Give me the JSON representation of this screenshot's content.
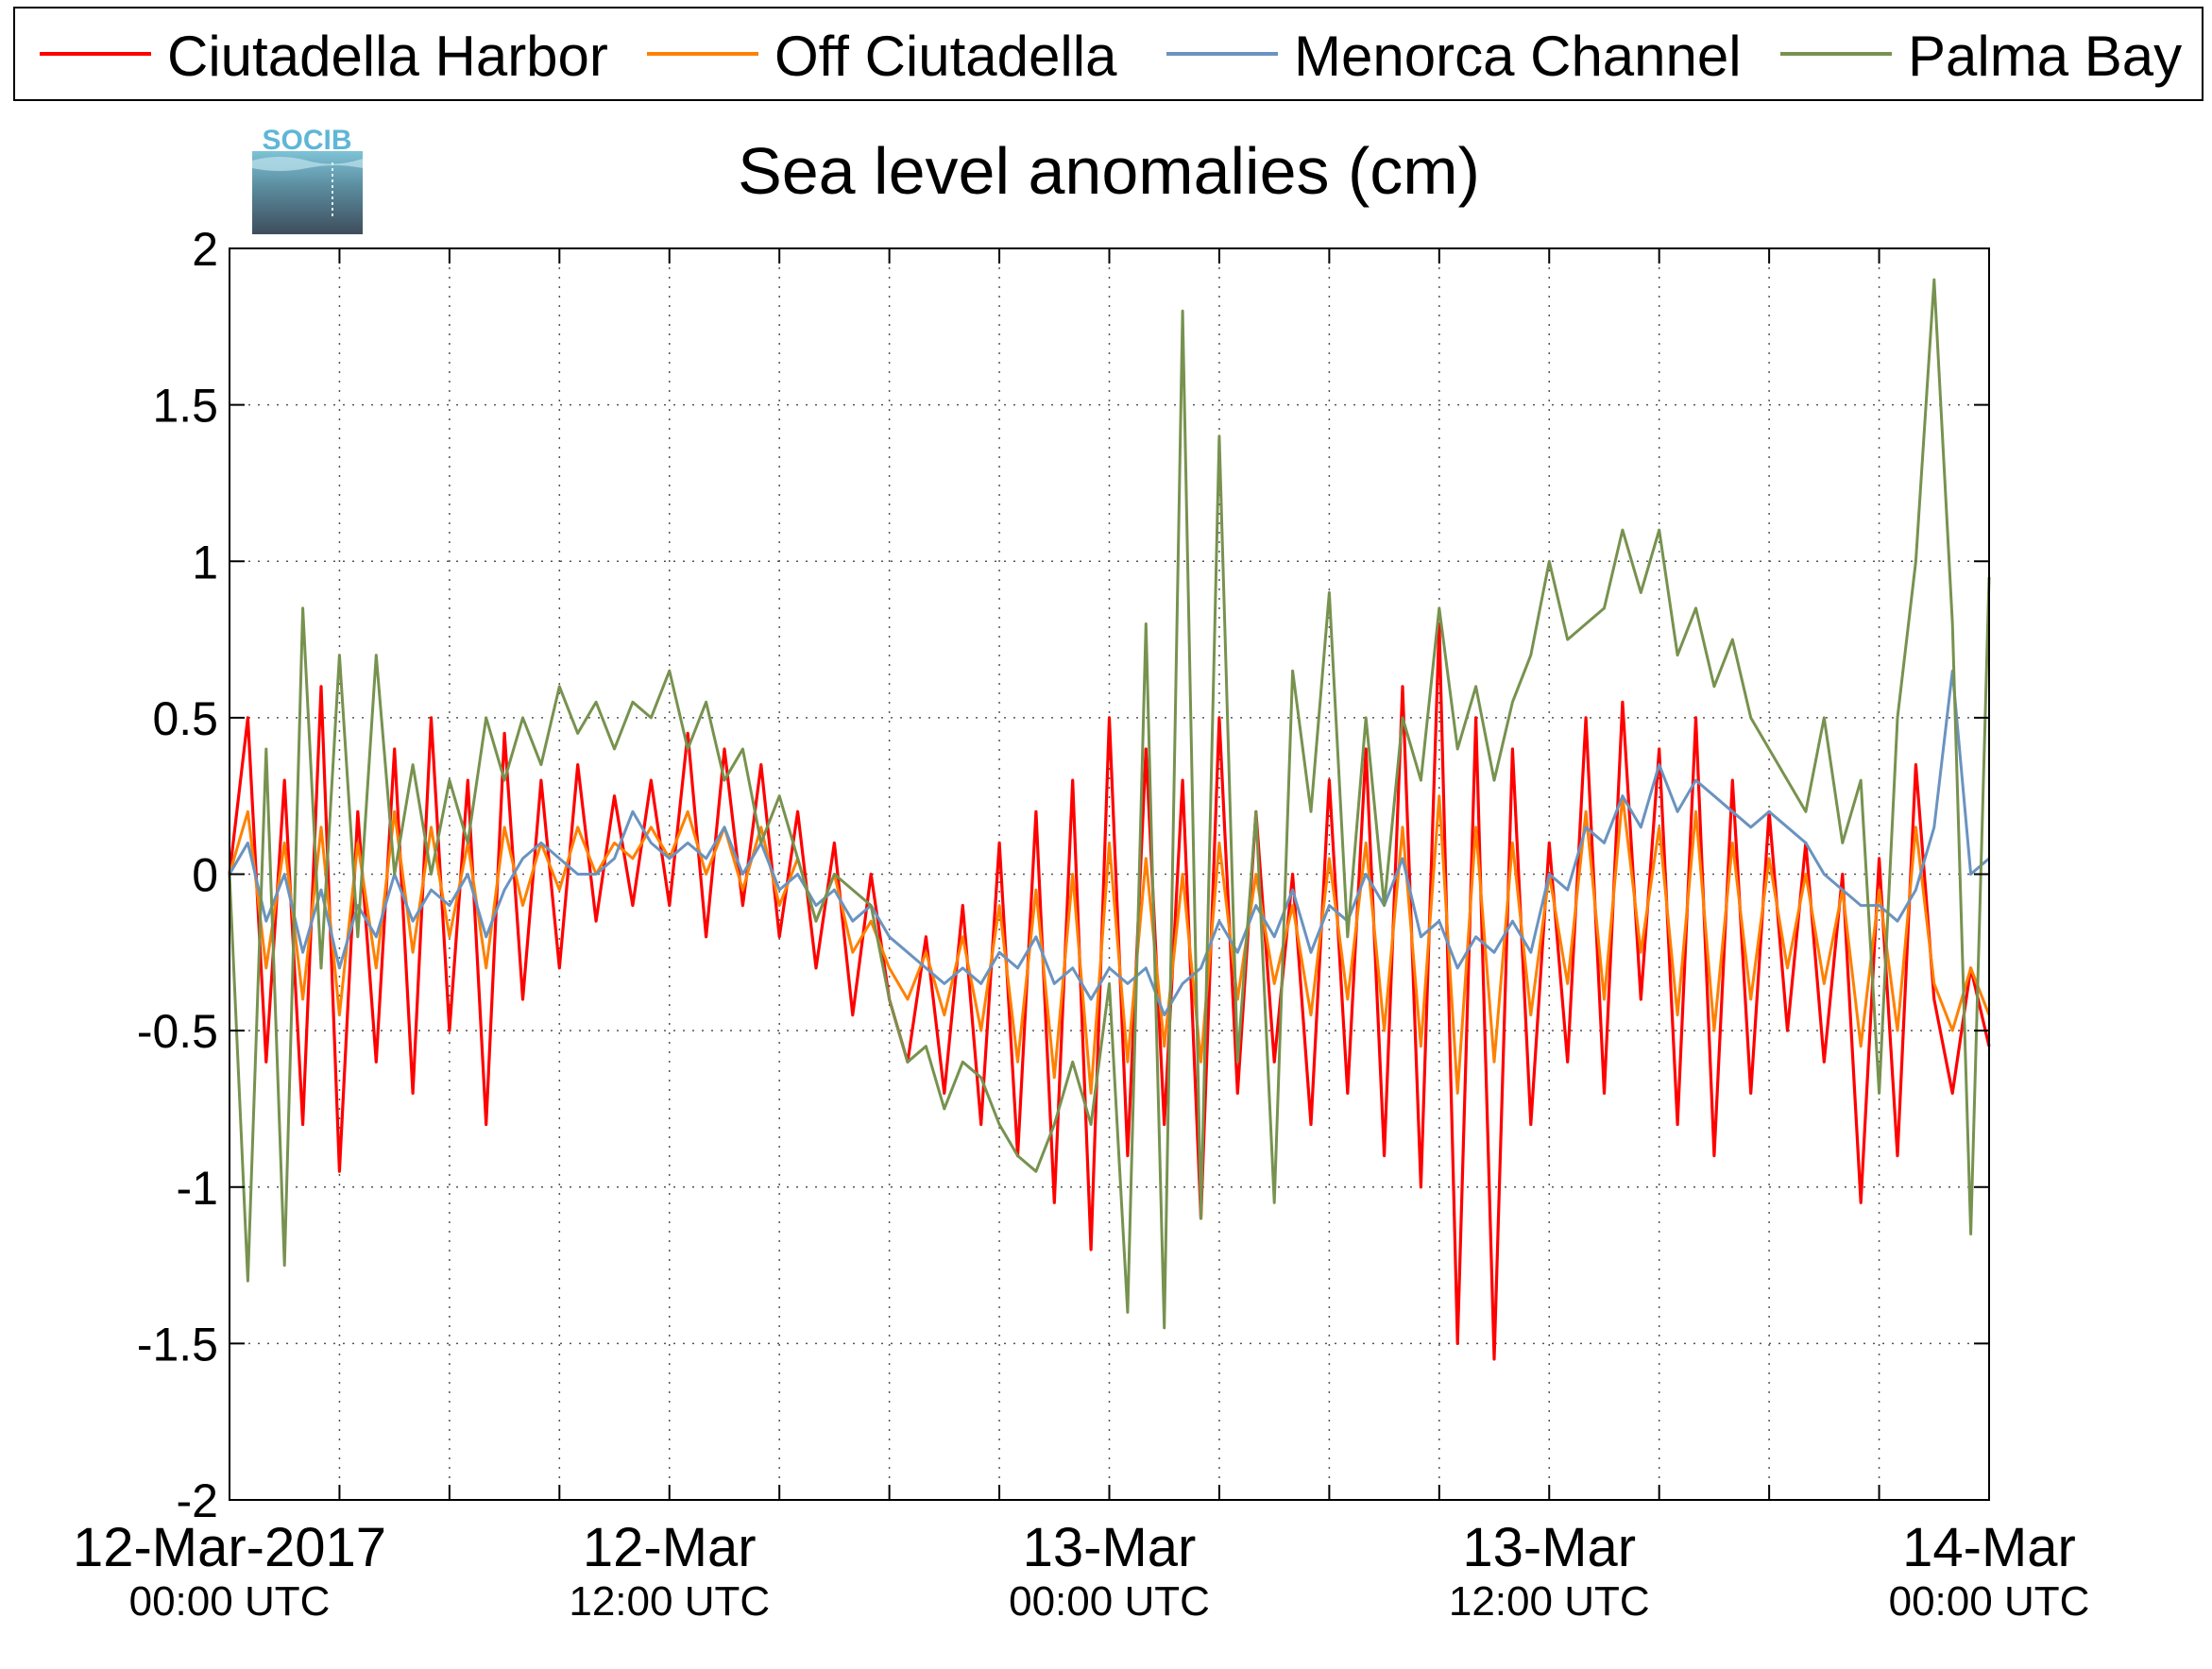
{
  "chart_data": {
    "type": "line",
    "title": "Sea level anomalies (cm)",
    "logo_text": "SOCIB",
    "xlabel": "",
    "ylabel": "",
    "ylim": [
      -2,
      2
    ],
    "y_ticks": [
      -2,
      -1.5,
      -1,
      -0.5,
      0,
      0.5,
      1,
      1.5,
      2
    ],
    "y_tick_labels": [
      "-2",
      "-1.5",
      "-1",
      "-0.5",
      "0",
      "0.5",
      "1",
      "1.5",
      "2"
    ],
    "xlim_hours": [
      0,
      48
    ],
    "x_ticks": [
      {
        "hour": 0,
        "line1": "12-Mar-2017",
        "line2": "00:00 UTC"
      },
      {
        "hour": 12,
        "line1": "12-Mar",
        "line2": "12:00 UTC"
      },
      {
        "hour": 24,
        "line1": "13-Mar",
        "line2": "00:00 UTC"
      },
      {
        "hour": 36,
        "line1": "13-Mar",
        "line2": "12:00 UTC"
      },
      {
        "hour": 48,
        "line1": "14-Mar",
        "line2": "00:00 UTC"
      }
    ],
    "minor_tick_hours": [
      3,
      6,
      9,
      15,
      18,
      21,
      27,
      30,
      33,
      39,
      42,
      45
    ],
    "grid": true,
    "legend_position": "top",
    "series": [
      {
        "name": "Ciutadella Harbor",
        "color": "#ff0000",
        "x": [
          0,
          0.5,
          1,
          1.5,
          2,
          2.5,
          3,
          3.5,
          4,
          4.5,
          5,
          5.5,
          6,
          6.5,
          7,
          7.5,
          8,
          8.5,
          9,
          9.5,
          10,
          10.5,
          11,
          11.5,
          12,
          12.5,
          13,
          13.5,
          14,
          14.5,
          15,
          15.5,
          16,
          16.5,
          17,
          17.5,
          18,
          18.5,
          19,
          19.5,
          20,
          20.5,
          21,
          21.5,
          22,
          22.5,
          23,
          23.5,
          24,
          24.5,
          25,
          25.5,
          26,
          26.5,
          27,
          27.5,
          28,
          28.5,
          29,
          29.5,
          30,
          30.5,
          31,
          31.5,
          32,
          32.5,
          33,
          33.5,
          34,
          34.5,
          35,
          35.5,
          36,
          36.5,
          37,
          37.5,
          38,
          38.5,
          39,
          39.5,
          40,
          40.5,
          41,
          41.5,
          42,
          42.5,
          43,
          43.5,
          44,
          44.5,
          45,
          45.5,
          46,
          46.5,
          47,
          47.5,
          48
        ],
        "y": [
          0.0,
          0.5,
          -0.6,
          0.3,
          -0.8,
          0.6,
          -0.95,
          0.2,
          -0.6,
          0.4,
          -0.7,
          0.5,
          -0.5,
          0.3,
          -0.8,
          0.45,
          -0.4,
          0.3,
          -0.3,
          0.35,
          -0.15,
          0.25,
          -0.1,
          0.3,
          -0.1,
          0.45,
          -0.2,
          0.4,
          -0.1,
          0.35,
          -0.2,
          0.2,
          -0.3,
          0.1,
          -0.45,
          0.0,
          -0.4,
          -0.6,
          -0.2,
          -0.7,
          -0.1,
          -0.8,
          0.1,
          -0.9,
          0.2,
          -1.05,
          0.3,
          -1.2,
          0.5,
          -0.9,
          0.4,
          -0.8,
          0.3,
          -1.1,
          0.5,
          -0.7,
          0.2,
          -0.6,
          0.0,
          -0.8,
          0.3,
          -0.7,
          0.4,
          -0.9,
          0.6,
          -1.0,
          0.8,
          -1.5,
          0.5,
          -1.55,
          0.4,
          -0.8,
          0.1,
          -0.6,
          0.5,
          -0.7,
          0.55,
          -0.4,
          0.4,
          -0.8,
          0.5,
          -0.9,
          0.3,
          -0.7,
          0.2,
          -0.5,
          0.1,
          -0.6,
          0.0,
          -1.05,
          0.05,
          -0.9,
          0.35,
          -0.4,
          -0.7,
          -0.3,
          -0.55
        ]
      },
      {
        "name": "Off Ciutadella",
        "color": "#ff8000",
        "x": [
          0,
          0.5,
          1,
          1.5,
          2,
          2.5,
          3,
          3.5,
          4,
          4.5,
          5,
          5.5,
          6,
          6.5,
          7,
          7.5,
          8,
          8.5,
          9,
          9.5,
          10,
          10.5,
          11,
          11.5,
          12,
          12.5,
          13,
          13.5,
          14,
          14.5,
          15,
          15.5,
          16,
          16.5,
          17,
          17.5,
          18,
          18.5,
          19,
          19.5,
          20,
          20.5,
          21,
          21.5,
          22,
          22.5,
          23,
          23.5,
          24,
          24.5,
          25,
          25.5,
          26,
          26.5,
          27,
          27.5,
          28,
          28.5,
          29,
          29.5,
          30,
          30.5,
          31,
          31.5,
          32,
          32.5,
          33,
          33.5,
          34,
          34.5,
          35,
          35.5,
          36,
          36.5,
          37,
          37.5,
          38,
          38.5,
          39,
          39.5,
          40,
          40.5,
          41,
          41.5,
          42,
          42.5,
          43,
          43.5,
          44,
          44.5,
          45,
          45.5,
          46,
          46.5,
          47,
          47.5,
          48
        ],
        "y": [
          0.0,
          0.2,
          -0.3,
          0.1,
          -0.4,
          0.15,
          -0.45,
          0.1,
          -0.3,
          0.2,
          -0.25,
          0.15,
          -0.2,
          0.1,
          -0.3,
          0.15,
          -0.1,
          0.1,
          -0.05,
          0.15,
          0.0,
          0.1,
          0.05,
          0.15,
          0.05,
          0.2,
          0.0,
          0.15,
          -0.05,
          0.15,
          -0.1,
          0.05,
          -0.15,
          0.0,
          -0.25,
          -0.15,
          -0.3,
          -0.4,
          -0.25,
          -0.45,
          -0.2,
          -0.5,
          -0.1,
          -0.6,
          -0.05,
          -0.65,
          0.0,
          -0.7,
          0.1,
          -0.6,
          0.05,
          -0.55,
          0.0,
          -0.6,
          0.1,
          -0.4,
          0.0,
          -0.35,
          -0.1,
          -0.45,
          0.05,
          -0.4,
          0.1,
          -0.5,
          0.15,
          -0.55,
          0.25,
          -0.7,
          0.15,
          -0.6,
          0.1,
          -0.45,
          0.0,
          -0.35,
          0.2,
          -0.4,
          0.25,
          -0.25,
          0.15,
          -0.45,
          0.2,
          -0.5,
          0.1,
          -0.4,
          0.05,
          -0.3,
          0.0,
          -0.35,
          -0.05,
          -0.55,
          -0.05,
          -0.5,
          0.15,
          -0.35,
          -0.5,
          -0.3,
          -0.45
        ]
      },
      {
        "name": "Menorca Channel",
        "color": "#6a93c0",
        "x": [
          0,
          0.5,
          1,
          1.5,
          2,
          2.5,
          3,
          3.5,
          4,
          4.5,
          5,
          5.5,
          6,
          6.5,
          7,
          7.5,
          8,
          8.5,
          9,
          9.5,
          10,
          10.5,
          11,
          11.5,
          12,
          12.5,
          13,
          13.5,
          14,
          14.5,
          15,
          15.5,
          16,
          16.5,
          17,
          17.5,
          18,
          18.5,
          19,
          19.5,
          20,
          20.5,
          21,
          21.5,
          22,
          22.5,
          23,
          23.5,
          24,
          24.5,
          25,
          25.5,
          26,
          26.5,
          27,
          27.5,
          28,
          28.5,
          29,
          29.5,
          30,
          30.5,
          31,
          31.5,
          32,
          32.5,
          33,
          33.5,
          34,
          34.5,
          35,
          35.5,
          36,
          36.5,
          37,
          37.5,
          38,
          38.5,
          39,
          39.5,
          40,
          40.5,
          41,
          41.5,
          42,
          42.5,
          43,
          43.5,
          44,
          44.5,
          45,
          45.5,
          46,
          46.5,
          47,
          47.5,
          48
        ],
        "y": [
          0.0,
          0.1,
          -0.15,
          0.0,
          -0.25,
          -0.05,
          -0.3,
          -0.1,
          -0.2,
          0.0,
          -0.15,
          -0.05,
          -0.1,
          0.0,
          -0.2,
          -0.05,
          0.05,
          0.1,
          0.05,
          0.0,
          0.0,
          0.05,
          0.2,
          0.1,
          0.05,
          0.1,
          0.05,
          0.15,
          0.0,
          0.1,
          -0.05,
          0.0,
          -0.1,
          -0.05,
          -0.15,
          -0.1,
          -0.2,
          -0.25,
          -0.3,
          -0.35,
          -0.3,
          -0.35,
          -0.25,
          -0.3,
          -0.2,
          -0.35,
          -0.3,
          -0.4,
          -0.3,
          -0.35,
          -0.3,
          -0.45,
          -0.35,
          -0.3,
          -0.15,
          -0.25,
          -0.1,
          -0.2,
          -0.05,
          -0.25,
          -0.1,
          -0.15,
          0.0,
          -0.1,
          0.05,
          -0.2,
          -0.15,
          -0.3,
          -0.2,
          -0.25,
          -0.15,
          -0.25,
          0.0,
          -0.05,
          0.15,
          0.1,
          0.25,
          0.15,
          0.35,
          0.2,
          0.3,
          0.25,
          0.2,
          0.15,
          0.2,
          0.15,
          0.1,
          0.0,
          -0.05,
          -0.1,
          -0.1,
          -0.15,
          -0.05,
          0.15,
          0.65,
          0.0,
          0.05
        ]
      },
      {
        "name": "Palma Bay",
        "color": "#77924f",
        "x": [
          0,
          0.5,
          1,
          1.5,
          2,
          2.5,
          3,
          3.5,
          4,
          4.5,
          5,
          5.5,
          6,
          6.5,
          7,
          7.5,
          8,
          8.5,
          9,
          9.5,
          10,
          10.5,
          11,
          11.5,
          12,
          12.5,
          13,
          13.5,
          14,
          14.5,
          15,
          15.5,
          16,
          16.5,
          17,
          17.5,
          18,
          18.5,
          19,
          19.5,
          20,
          20.5,
          21,
          21.5,
          22,
          22.5,
          23,
          23.5,
          24,
          24.5,
          25,
          25.5,
          26,
          26.5,
          27,
          27.5,
          28,
          28.5,
          29,
          29.5,
          30,
          30.5,
          31,
          31.5,
          32,
          32.5,
          33,
          33.5,
          34,
          34.5,
          35,
          35.5,
          36,
          36.5,
          37,
          37.5,
          38,
          38.5,
          39,
          39.5,
          40,
          40.5,
          41,
          41.5,
          42,
          42.5,
          43,
          43.5,
          44,
          44.5,
          45,
          45.5,
          46,
          46.5,
          47,
          47.5,
          48
        ],
        "y": [
          0.0,
          -1.3,
          0.4,
          -1.25,
          0.85,
          -0.3,
          0.7,
          -0.2,
          0.7,
          0.0,
          0.35,
          0.0,
          0.3,
          0.1,
          0.5,
          0.3,
          0.5,
          0.35,
          0.6,
          0.45,
          0.55,
          0.4,
          0.55,
          0.5,
          0.65,
          0.4,
          0.55,
          0.3,
          0.4,
          0.1,
          0.25,
          0.05,
          -0.15,
          0.0,
          -0.05,
          -0.1,
          -0.4,
          -0.6,
          -0.55,
          -0.75,
          -0.6,
          -0.65,
          -0.8,
          -0.9,
          -0.95,
          -0.8,
          -0.6,
          -0.8,
          -0.35,
          -1.4,
          0.8,
          -1.45,
          1.8,
          -1.1,
          1.4,
          -0.6,
          0.2,
          -1.05,
          0.65,
          0.2,
          0.9,
          -0.2,
          0.5,
          -0.1,
          0.5,
          0.3,
          0.85,
          0.4,
          0.6,
          0.3,
          0.55,
          0.7,
          1.0,
          0.75,
          0.8,
          0.85,
          1.1,
          0.9,
          1.1,
          0.7,
          0.85,
          0.6,
          0.75,
          0.5,
          0.4,
          0.3,
          0.2,
          0.5,
          0.1,
          0.3,
          -0.7,
          0.5,
          1.0,
          1.9,
          0.8,
          -1.15,
          0.95
        ]
      }
    ]
  }
}
